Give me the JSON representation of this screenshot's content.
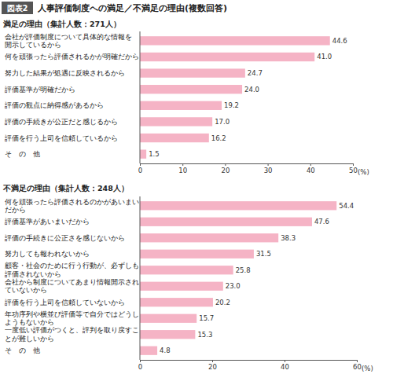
{
  "figure": {
    "label": "図表2",
    "title": "人事評価制度への満足／不満足の理由(複数回答)"
  },
  "chart_data": [
    {
      "type": "bar",
      "orientation": "horizontal",
      "title": "満足の理由（集計人数：271人）",
      "categories": [
        "会社が評価制度について具体的な情報を\n開示しているから",
        "何を頑張ったら評価されるかが明確だから",
        "努力した結果が処遇に反映されるから",
        "評価基準が明確だから",
        "評価の観点に納得感があるから",
        "評価の手続きが公正だと感じるから",
        "評価を行う上司を信頼しているから",
        "そ　の　他"
      ],
      "values": [
        44.6,
        41.0,
        24.7,
        24.0,
        19.2,
        17.0,
        16.2,
        1.5
      ],
      "value_labels": [
        "44.6",
        "41.0",
        "24.7",
        "24.0",
        "19.2",
        "17.0",
        "16.2",
        "1.5"
      ],
      "color": "#f5b3c5",
      "data_labels": true,
      "grid": false,
      "xlim": [
        0,
        50
      ],
      "xticks": [
        0,
        10,
        20,
        30,
        40,
        50
      ],
      "xlabel": "(%)"
    },
    {
      "type": "bar",
      "orientation": "horizontal",
      "title": "不満足の理由（集計人数：248人）",
      "categories": [
        "何を頑張ったら評価されるのかがあいまい\nだから",
        "評価基準があいまいだから",
        "評価の手続きに公正さを感じないから",
        "努力しても報われないから",
        "顧客・社会のために行う行動が、必ずしも\n評価されないから",
        "会社から制度についてあまり情報開示され\nていないから",
        "評価を行う上司を信頼していないから",
        "年功序列や横並び評価等で自分ではどうし\nようもないから",
        "一度低い評価がつくと、評判を取り戻すこ\nとが難しいから",
        "そ　の　他"
      ],
      "values": [
        54.4,
        47.6,
        38.3,
        31.5,
        25.8,
        23.0,
        20.2,
        15.7,
        15.3,
        4.8
      ],
      "value_labels": [
        "54.4",
        "47.6",
        "38.3",
        "31.5",
        "25.8",
        "23.0",
        "20.2",
        "15.7",
        "15.3",
        "4.8"
      ],
      "color": "#f5b3c5",
      "data_labels": true,
      "grid": false,
      "xlim": [
        0,
        60
      ],
      "xticks": [
        0,
        20,
        40,
        60
      ],
      "xlabel": "(%)"
    }
  ]
}
